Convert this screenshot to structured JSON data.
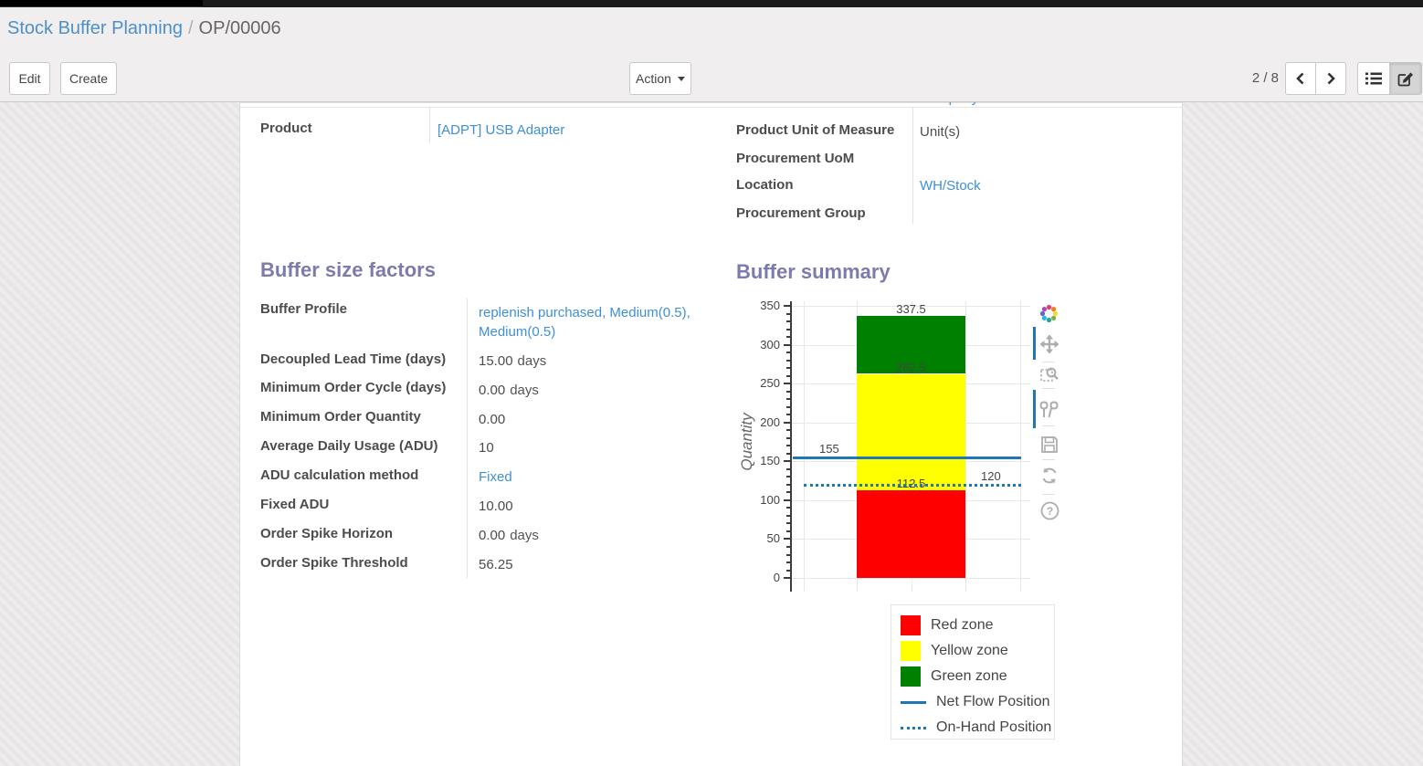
{
  "breadcrumb": {
    "parent": "Stock Buffer Planning",
    "separator": "/",
    "current": "OP/00006"
  },
  "control_panel": {
    "edit_label": "Edit",
    "create_label": "Create",
    "action_label": "Action",
    "pager": "2 / 8"
  },
  "icons": [
    "previous-page-icon",
    "next-page-icon",
    "list-view-icon",
    "form-view-icon",
    "plotly-logo-icon",
    "pan-icon",
    "zoom-box-icon",
    "compare-hover-icon",
    "save-icon",
    "reset-axes-icon",
    "help-icon"
  ],
  "form": {
    "partial_top_value": "Company",
    "left_group": {
      "fields": [
        {
          "label": "Product",
          "value": "[ADPT] USB Adapter"
        }
      ]
    },
    "right_group": {
      "fields": [
        {
          "label": "Product Unit of Measure",
          "value": "Unit(s)"
        },
        {
          "label": "Procurement UoM",
          "value": ""
        },
        {
          "label": "Location",
          "value": "WH/Stock"
        },
        {
          "label": "Procurement Group",
          "value": ""
        }
      ]
    },
    "buffer_factors": {
      "title": "Buffer size factors",
      "fields": [
        {
          "label": "Buffer Profile",
          "value": "replenish purchased, Medium(0.5), Medium(0.5)",
          "suffix": "",
          "link": true
        },
        {
          "label": "Decoupled Lead Time (days)",
          "value": "15.00",
          "suffix": "days"
        },
        {
          "label": "Minimum Order Cycle (days)",
          "value": "0.00",
          "suffix": "days"
        },
        {
          "label": "Minimum Order Quantity",
          "value": "0.00",
          "suffix": ""
        },
        {
          "label": "Average Daily Usage (ADU)",
          "value": "10",
          "suffix": ""
        },
        {
          "label": "ADU calculation method",
          "value": "Fixed",
          "suffix": "",
          "link": true
        },
        {
          "label": "Fixed ADU",
          "value": "10.00",
          "suffix": ""
        },
        {
          "label": "Order Spike Horizon",
          "value": "0.00",
          "suffix": "days"
        },
        {
          "label": "Order Spike Threshold",
          "value": "56.25",
          "suffix": ""
        }
      ]
    },
    "buffer_summary_title": "Buffer summary"
  },
  "chart_data": {
    "type": "bar",
    "title": "Buffer summary",
    "xlabel": "",
    "ylabel": "Quantity",
    "ylim": [
      0,
      350
    ],
    "ytick_step": 50,
    "yminor_step": 10,
    "grid": true,
    "zones": [
      {
        "name": "Red zone",
        "color": "#ff0000",
        "from": 0,
        "to": 112.5
      },
      {
        "name": "Yellow zone",
        "color": "#ffff00",
        "from": 112.5,
        "to": 262.5
      },
      {
        "name": "Green zone",
        "color": "#008000",
        "from": 262.5,
        "to": 337.5
      }
    ],
    "boundary_labels": [
      {
        "value": 337.5,
        "text": "337.5"
      },
      {
        "value": 262.5,
        "text": "262.5"
      },
      {
        "value": 112.5,
        "text": "112.5"
      }
    ],
    "lines": [
      {
        "name": "Net Flow Position",
        "value": 155,
        "label": "155",
        "style": "solid",
        "color": "#1f77b4",
        "label_side": "left"
      },
      {
        "name": "On-Hand Position",
        "value": 120,
        "label": "120",
        "style": "dotted",
        "color": "#1f77b4",
        "label_side": "right"
      }
    ],
    "legend": [
      {
        "label": "Red zone",
        "type": "rect",
        "color": "#ff0000"
      },
      {
        "label": "Yellow zone",
        "type": "rect",
        "color": "#ffff00"
      },
      {
        "label": "Green zone",
        "type": "rect",
        "color": "#008000"
      },
      {
        "label": "Net Flow Position",
        "type": "line",
        "color": "#1f77b4"
      },
      {
        "label": "On-Hand Position",
        "type": "dots",
        "color": "#1f77b4"
      }
    ],
    "legend_position": "bottom-right"
  }
}
